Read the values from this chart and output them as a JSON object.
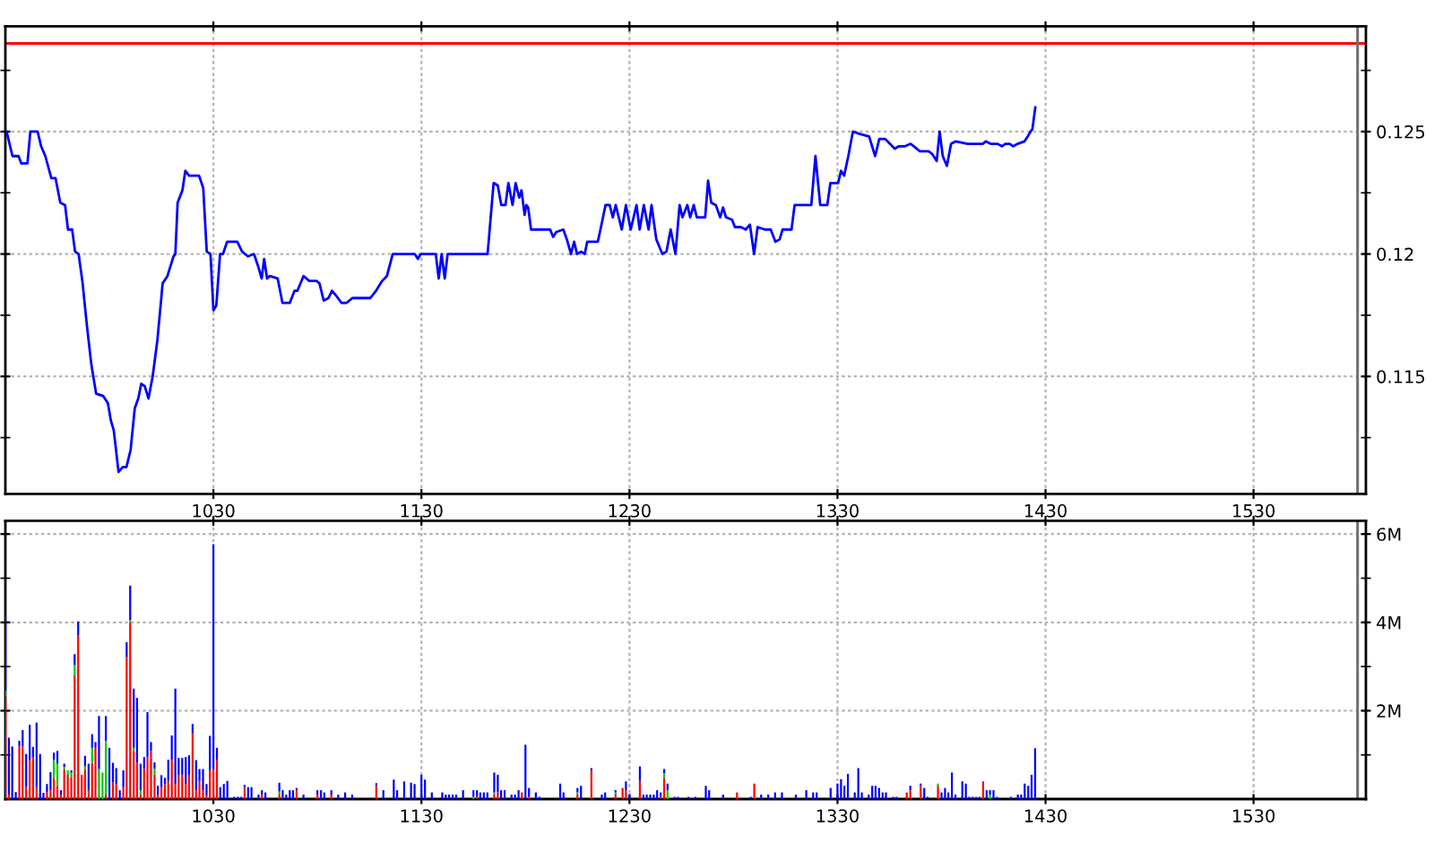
{
  "chart_data": [
    {
      "type": "line",
      "series": [
        {
          "color": "#0000ff",
          "x": [
            930.6,
            933.4,
            936.3,
            937.7,
            940.6,
            942,
            945.5,
            947.2,
            949.2,
            952.1,
            954.1,
            956.4,
            958.7,
            960.1,
            962.1,
            963.5,
            965.2,
            967,
            969.3,
            971.3,
            973.6,
            977,
            979.3,
            980.7,
            982.1,
            984.4,
            986.4,
            988.2,
            990.2,
            992.2,
            993.9,
            995.3,
            997,
            998.8,
            1000.8,
            1003.1,
            1005.6,
            1007.9,
            1010.8,
            1011.7,
            1012.8,
            1015.1,
            1016.5,
            1018.3,
            1023.1,
            1025.1,
            1026.8,
            1028.6,
            1030,
            1031.4,
            1033.2,
            1034.6,
            1036.6,
            1041.5,
            1043.8,
            1046.6,
            1049.5,
            1051.5,
            1053.2,
            1054.4,
            1055.8,
            1057.2,
            1060.9,
            1063.2,
            1066.7,
            1069,
            1070.4,
            1073.3,
            1076.1,
            1079.6,
            1081,
            1083,
            1085.3,
            1087,
            1089,
            1091.6,
            1093.9,
            1096.8,
            1105.4,
            1108.2,
            1111.1,
            1113.4,
            1116.2,
            1126.8,
            1128.3,
            1129.7,
            1134,
            1136.9,
            1138.3,
            1139.7,
            1141.2,
            1142.6,
            1161.8,
            1164.7,
            1166.7,
            1168.4,
            1170.4,
            1171.8,
            1173.8,
            1175.3,
            1177,
            1178.1,
            1179.6,
            1180.4,
            1181.3,
            1182.7,
            1191.9,
            1193.3,
            1194.8,
            1198.2,
            1199.9,
            1201.9,
            1203.4,
            1204.8,
            1206.8,
            1208.5,
            1209.7,
            1214.8,
            1216.8,
            1218.5,
            1220.5,
            1222,
            1223.4,
            1226.3,
            1228.3,
            1230.6,
            1233.4,
            1234.9,
            1236.9,
            1239.2,
            1240.6,
            1242.9,
            1245.8,
            1247.8,
            1249.8,
            1252.1,
            1254.1,
            1255.5,
            1257.8,
            1259.2,
            1260.9,
            1262.4,
            1266.4,
            1267.8,
            1269.3,
            1271.5,
            1273.6,
            1275,
            1276.4,
            1279.3,
            1280.7,
            1283.6,
            1285.9,
            1287.9,
            1289.9,
            1291.6,
            1295,
            1297.9,
            1300.2,
            1302.2,
            1303.6,
            1307.9,
            1309.4,
            1317.4,
            1319.4,
            1321.7,
            1325.1,
            1326.6,
            1330.3,
            1331.7,
            1333.2,
            1335.2,
            1337.4,
            1340.9,
            1345.2,
            1348.1,
            1350.1,
            1352.9,
            1355.2,
            1357.5,
            1359.5,
            1362.4,
            1365.2,
            1366.7,
            1369.5,
            1373.8,
            1375.4,
            1377.7,
            1379.1,
            1380.6,
            1382.6,
            1384.6,
            1386.9,
            1392.6,
            1399.8,
            1401.3,
            1403.6,
            1407,
            1409,
            1410.7,
            1412.8,
            1414.5,
            1416.5,
            1419.9,
            1421.4,
            1422.8,
            1423.7,
            1425.1
          ],
          "values": [
            0.125,
            0.124,
            0.124,
            0.1237,
            0.1237,
            0.125,
            0.125,
            0.1244,
            0.124,
            0.1231,
            0.1231,
            0.1221,
            0.122,
            0.121,
            0.121,
            0.1201,
            0.12,
            0.1189,
            0.117,
            0.1155,
            0.1143,
            0.1142,
            0.1139,
            0.1132,
            0.1128,
            0.1111,
            0.1113,
            0.1113,
            0.112,
            0.1137,
            0.1141,
            0.1147,
            0.1146,
            0.1141,
            0.115,
            0.1165,
            0.1188,
            0.1191,
            0.1199,
            0.12,
            0.1221,
            0.1226,
            0.1234,
            0.1232,
            0.1232,
            0.1227,
            0.1201,
            0.12,
            0.1177,
            0.1179,
            0.12,
            0.12,
            0.1205,
            0.1205,
            0.1201,
            0.1199,
            0.12,
            0.1195,
            0.119,
            0.1198,
            0.119,
            0.1191,
            0.119,
            0.118,
            0.118,
            0.1185,
            0.1185,
            0.1191,
            0.1189,
            0.1189,
            0.1188,
            0.1181,
            0.1182,
            0.1185,
            0.1183,
            0.118,
            0.118,
            0.1182,
            0.1182,
            0.1185,
            0.1189,
            0.1191,
            0.12,
            0.12,
            0.1198,
            0.12,
            0.12,
            0.12,
            0.119,
            0.12,
            0.119,
            0.12,
            0.12,
            0.1229,
            0.1228,
            0.122,
            0.122,
            0.1229,
            0.122,
            0.1229,
            0.1223,
            0.1226,
            0.1216,
            0.122,
            0.1219,
            0.121,
            0.121,
            0.1207,
            0.1209,
            0.121,
            0.1206,
            0.12,
            0.1205,
            0.12,
            0.1201,
            0.12,
            0.1205,
            0.1205,
            0.1213,
            0.122,
            0.122,
            0.1215,
            0.122,
            0.121,
            0.122,
            0.121,
            0.122,
            0.121,
            0.122,
            0.121,
            0.122,
            0.1206,
            0.12,
            0.1201,
            0.121,
            0.12,
            0.122,
            0.1215,
            0.122,
            0.1215,
            0.122,
            0.1215,
            0.1215,
            0.123,
            0.1221,
            0.122,
            0.1215,
            0.1219,
            0.1215,
            0.1214,
            0.1211,
            0.1211,
            0.121,
            0.1212,
            0.12,
            0.1211,
            0.121,
            0.121,
            0.1205,
            0.1206,
            0.121,
            0.121,
            0.122,
            0.122,
            0.124,
            0.122,
            0.122,
            0.1229,
            0.1229,
            0.1234,
            0.1232,
            0.124,
            0.125,
            0.1249,
            0.1248,
            0.124,
            0.1247,
            0.1247,
            0.1245,
            0.1243,
            0.1244,
            0.1244,
            0.1245,
            0.1244,
            0.1242,
            0.1242,
            0.1241,
            0.1238,
            0.125,
            0.124,
            0.1236,
            0.1245,
            0.1246,
            0.1245,
            0.1245,
            0.1246,
            0.1245,
            0.1245,
            0.1244,
            0.1245,
            0.1245,
            0.1244,
            0.1245,
            0.1246,
            0.1248,
            0.125,
            0.1251,
            0.126
          ]
        }
      ],
      "xlim": [
        930,
        1584
      ],
      "xticks": [
        1030,
        1130,
        1230,
        1330,
        1430,
        1530
      ],
      "ylim": [
        0.1102,
        0.1293
      ],
      "yticks": [
        {
          "value": 0.1125,
          "label": null
        },
        0.115,
        {
          "value": 0.1175,
          "label": null
        },
        0.12,
        {
          "value": 0.1225,
          "label": null
        },
        0.125,
        {
          "value": 0.1275,
          "label": null
        }
      ],
      "ref_lines": [
        {
          "axis": "y",
          "value": 0.1286,
          "color": "#ff0000"
        },
        {
          "axis": "x",
          "value": 1580,
          "color": "#707070"
        }
      ],
      "grid": true
    },
    {
      "type": "bar",
      "stacked": true,
      "x": [
        930,
        931.7,
        933.3,
        935,
        936.7,
        938.3,
        940,
        941.7,
        943.3,
        945,
        946.7,
        948.3,
        950,
        951.7,
        953.3,
        955,
        956.7,
        958.3,
        960,
        961.7,
        963.3,
        965,
        966.7,
        968.3,
        970,
        971.7,
        973.3,
        975,
        976.7,
        978.3,
        980,
        981.7,
        983.3,
        985,
        986.7,
        988.3,
        990,
        991.7,
        993.3,
        995,
        996.7,
        998.3,
        1000,
        1001.7,
        1003.3,
        1005,
        1006.7,
        1008.3,
        1010,
        1011.7,
        1013.3,
        1015,
        1016.7,
        1018.3,
        1020,
        1021.7,
        1023.3,
        1025,
        1026.7,
        1028.3,
        1030,
        1031.7,
        1033.3,
        1035,
        1036.7,
        1040,
        1041.7,
        1043.3,
        1045,
        1046.7,
        1048.3,
        1051.7,
        1053.3,
        1055,
        1061.7,
        1063.3,
        1065,
        1066.7,
        1068.3,
        1070,
        1073.3,
        1080,
        1081.7,
        1083.3,
        1086.7,
        1090,
        1093.3,
        1096.7,
        1108.3,
        1111.7,
        1116.7,
        1118.3,
        1121.7,
        1125,
        1126.7,
        1130,
        1131.7,
        1135,
        1140,
        1141.7,
        1143.3,
        1145,
        1146.7,
        1150,
        1155,
        1156.7,
        1158.3,
        1160,
        1161.7,
        1165,
        1166.7,
        1168.3,
        1170,
        1173.3,
        1175,
        1176.7,
        1178.3,
        1180,
        1181.7,
        1185,
        1186.7,
        1196.7,
        1198.3,
        1205,
        1206.7,
        1211.7,
        1216.7,
        1218.3,
        1223.3,
        1226.7,
        1228.3,
        1230,
        1235,
        1236.7,
        1238.3,
        1240,
        1241.7,
        1243.3,
        1245,
        1246.7,
        1248.3,
        1251.7,
        1253.3,
        1258.3,
        1261.7,
        1266.7,
        1268.3,
        1275,
        1281.7,
        1288.3,
        1290,
        1293.3,
        1296.7,
        1300,
        1303.3,
        1310,
        1315,
        1318.3,
        1320,
        1326.7,
        1330,
        1331.7,
        1333.3,
        1335,
        1338.3,
        1340,
        1341.7,
        1345,
        1346.7,
        1348.3,
        1350,
        1351.7,
        1353.3,
        1356.7,
        1358.3,
        1363.3,
        1365,
        1370,
        1371.7,
        1373.3,
        1378.3,
        1380,
        1381.7,
        1383.3,
        1385,
        1386.7,
        1390,
        1391.7,
        1393.3,
        1395,
        1396.7,
        1398.3,
        1400,
        1401.7,
        1403.3,
        1405,
        1406.7,
        1413.3,
        1416.7,
        1418.3,
        1420,
        1421.7,
        1423.3,
        1425
      ],
      "series": [
        {
          "color": "#ff0000",
          "values": [
            2.32,
            0.1,
            null,
            null,
            1.2,
            1.19,
            0.27,
            0.89,
            0.95,
            0.27,
            null,
            null,
            0.16,
            0.2,
            0.48,
            0.3,
            0.1,
            0.68,
            0.55,
            0.5,
            2.8,
            3.71,
            0.55,
            0.68,
            0.2,
            0.82,
            1.16,
            null,
            null,
            0.1,
            null,
            0.38,
            0.34,
            null,
            0.27,
            3.22,
            4.0,
            1.09,
            0.82,
            0.1,
            0.68,
            0.95,
            1.09,
            0.55,
            0.1,
            0.27,
            0.34,
            0.41,
            0.89,
            0.34,
            0.55,
            0.55,
            0.34,
            0.55,
            1.5,
            0.2,
            0.41,
            0.2,
            0.07,
            0.65,
            0.68,
            0.89,
            null,
            null,
            null,
            null,
            null,
            null,
            0.27,
            null,
            null,
            null,
            0.1,
            null,
            0.1,
            null,
            null,
            null,
            null,
            0.2,
            null,
            0.1,
            null,
            null,
            0.1,
            null,
            null,
            null,
            0.31,
            null,
            null,
            null,
            null,
            null,
            null,
            null,
            null,
            null,
            null,
            null,
            null,
            null,
            null,
            null,
            null,
            0.05,
            null,
            null,
            null,
            0.1,
            0.15,
            null,
            null,
            null,
            null,
            null,
            0.15,
            null,
            0.05,
            null,
            null,
            null,
            null,
            0.1,
            null,
            0.65,
            null,
            null,
            0.1,
            0.25,
            0.2,
            null,
            0.41,
            null,
            null,
            null,
            null,
            null,
            0.05,
            0.48,
            null,
            null,
            null,
            null,
            null,
            null,
            null,
            null,
            0.15,
            null,
            0.35,
            null,
            null,
            null,
            null,
            null,
            null,
            null,
            null,
            null,
            null,
            null,
            null,
            null,
            null,
            null,
            null,
            null,
            null,
            null,
            null,
            null,
            null,
            null,
            null,
            0.15,
            0.2,
            0.3,
            null,
            null,
            0.3,
            null,
            null,
            null,
            null,
            null,
            null,
            null,
            null,
            null,
            null,
            null,
            0.4,
            null,
            null,
            null,
            null,
            null,
            null,
            null,
            null,
            null,
            null,
            null
          ]
        },
        {
          "color": "#00c800",
          "values": [
            0.14,
            null,
            null,
            null,
            null,
            null,
            null,
            null,
            null,
            null,
            null,
            null,
            null,
            null,
            0.41,
            0.5,
            null,
            0.05,
            0.1,
            0.1,
            0.23,
            null,
            null,
            0.07,
            null,
            0.34,
            null,
            0.68,
            0.6,
            1.22,
            null,
            null,
            null,
            null,
            null,
            null,
            0.05,
            0.07,
            null,
            0.1,
            null,
            null,
            null,
            0.14,
            null,
            null,
            null,
            null,
            null,
            null,
            null,
            null,
            null,
            null,
            null,
            null,
            null,
            null,
            null,
            null,
            null,
            null,
            null,
            null,
            null,
            null,
            null,
            null,
            null,
            null,
            null,
            null,
            null,
            null,
            0.07,
            null,
            null,
            null,
            null,
            null,
            null,
            null,
            null,
            null,
            null,
            null,
            null,
            null,
            null,
            null,
            null,
            null,
            null,
            null,
            null,
            null,
            null,
            null,
            null,
            null,
            null,
            null,
            null,
            null,
            0.05,
            null,
            null,
            null,
            null,
            0.05,
            null,
            null,
            null,
            null,
            null,
            null,
            null,
            null,
            null,
            null,
            null,
            null,
            null,
            0.05,
            null,
            null,
            null,
            null,
            0.05,
            null,
            null,
            null,
            null,
            null,
            null,
            null,
            null,
            null,
            null,
            0.1,
            0.2,
            null,
            null,
            null,
            null,
            null,
            null,
            null,
            null,
            null,
            null,
            null,
            null,
            null,
            null,
            null,
            null,
            null,
            null,
            null,
            null,
            null,
            null,
            null,
            null,
            null,
            null,
            null,
            null,
            null,
            null,
            null,
            null,
            null,
            null,
            null,
            null,
            null,
            null,
            null,
            0.05,
            null,
            null,
            null,
            null,
            null,
            null,
            null,
            null,
            null,
            null,
            null,
            null,
            null,
            0.1,
            null,
            null,
            null,
            null,
            null,
            null,
            null,
            null,
            null
          ]
        },
        {
          "color": "#0000ff",
          "values": [
            1.7,
            1.29,
            1.19,
            0.16,
            0.12,
            0.37,
            0.75,
            0.79,
            0.23,
            1.46,
            1.02,
            0.14,
            0.18,
            0.41,
            0.16,
            0.29,
            0.1,
            0.07,
            null,
            0.05,
            0.25,
            0.31,
            null,
            0.23,
            0.6,
            0.31,
            0.13,
            1.2,
            null,
            0.56,
            1.16,
            0.44,
            0.36,
            0.2,
            0.38,
            0.33,
            0.78,
            1.34,
            1.47,
            0.6,
            0.27,
            1.02,
            0.2,
            0.14,
            0.2,
            0.27,
            0.14,
            0.48,
            0.55,
            2.16,
            0.38,
            0.38,
            0.61,
            0.44,
            0.2,
            0.68,
            0.27,
            0.48,
            0.27,
            0.78,
            5.09,
            0.27,
            0.27,
            0.34,
            0.41,
            0.05,
            0.05,
            0.05,
            0.05,
            0.27,
            0.27,
            0.1,
            0.1,
            0.15,
            0.2,
            0.2,
            0.1,
            0.2,
            0.2,
            0.05,
            0.1,
            0.1,
            0.2,
            0.15,
            0.1,
            0.1,
            0.15,
            0.1,
            0.05,
            0.2,
            0.44,
            0.2,
            0.4,
            0.37,
            0.34,
            0.55,
            0.44,
            0.15,
            0.15,
            0.1,
            0.1,
            0.1,
            0.1,
            0.2,
            0.15,
            0.15,
            0.15,
            0.15,
            0.15,
            0.45,
            0.4,
            0.2,
            0.2,
            0.1,
            0.1,
            0.2,
            null,
            1.23,
            0.2,
            0.15,
            0.05,
            0.35,
            0.15,
            0.1,
            0.3,
            0.05,
            0.1,
            0.15,
            0.05,
            null,
            0.2,
            0.1,
            0.33,
            0.1,
            0.1,
            0.1,
            0.1,
            0.2,
            0.1,
            0.1,
            0.15,
            0.05,
            0.05,
            0.05,
            0.05,
            0.3,
            0.2,
            0.1,
            null,
            0.05,
            null,
            0.1,
            0.1,
            0.15,
            0.15,
            0.1,
            0.2,
            0.15,
            0.15,
            0.25,
            0.35,
            0.45,
            0.3,
            0.57,
            0.15,
            0.7,
            0.15,
            0.1,
            0.3,
            0.3,
            0.25,
            0.15,
            0.15,
            0.05,
            0.05,
            null,
            0.1,
            0.05,
            0.25,
            0.05,
            null,
            0.15,
            0.25,
            0.15,
            0.6,
            0.1,
            0.4,
            0.35,
            0.05,
            0.05,
            0.05,
            0.05,
            null,
            0.2,
            0.1,
            0.2,
            0.05,
            0.05,
            0.1,
            0.1,
            0.35,
            0.3,
            0.55,
            1.15
          ]
        }
      ],
      "xlim": [
        930,
        1584
      ],
      "xticks": [
        1030,
        1130,
        1230,
        1330,
        1430,
        1530
      ],
      "ylim": [
        0,
        6.3
      ],
      "yticks": [
        {
          "value": 1,
          "label": null
        },
        {
          "value": 2,
          "label": "2M"
        },
        {
          "value": 3,
          "label": null
        },
        {
          "value": 4,
          "label": "4M"
        },
        {
          "value": 5,
          "label": null
        },
        {
          "value": 6,
          "label": "6M"
        }
      ],
      "ref_lines": [
        {
          "axis": "x",
          "value": 1580,
          "color": "#707070"
        }
      ],
      "grid": true
    }
  ]
}
